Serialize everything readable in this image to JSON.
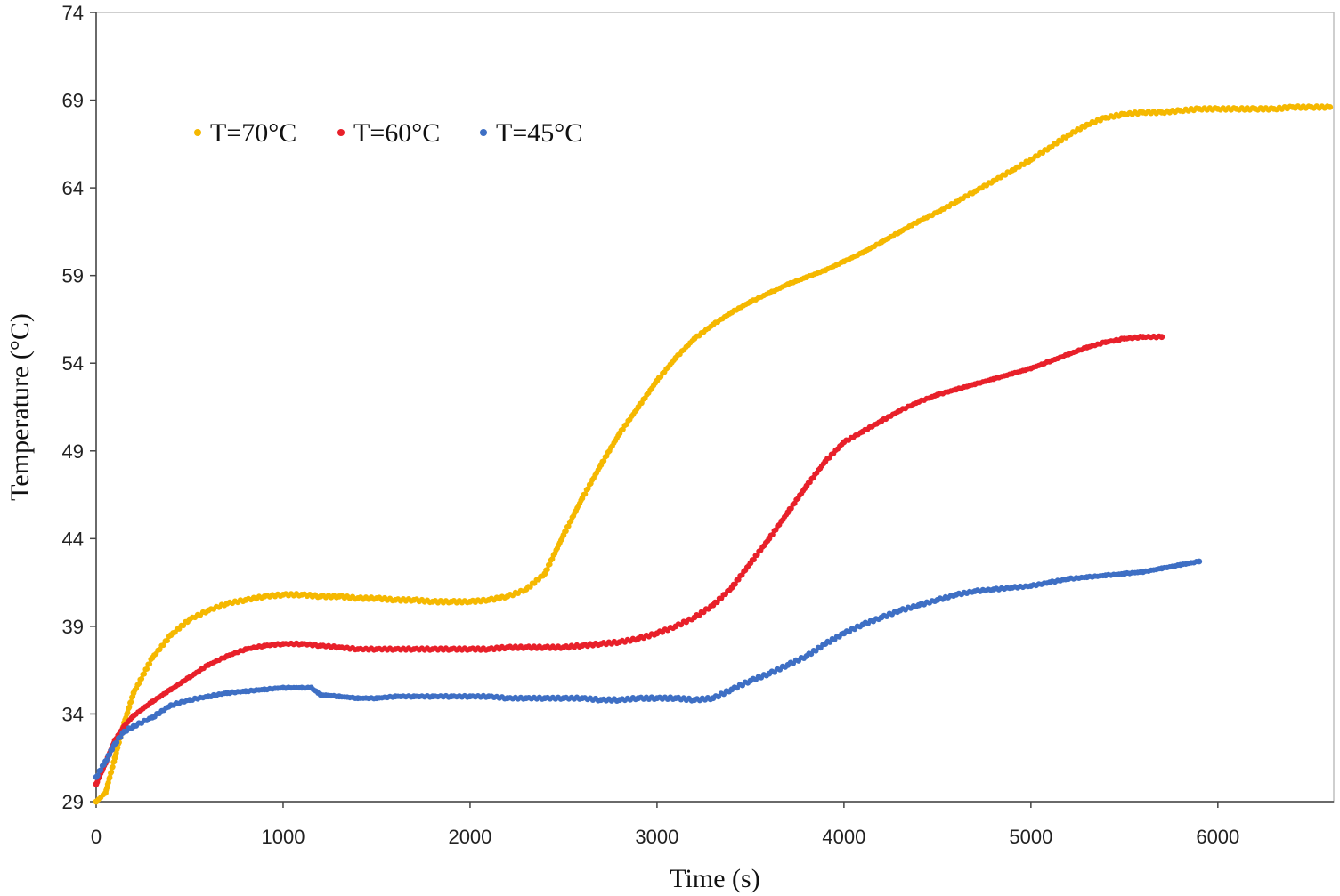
{
  "chart_data": {
    "type": "scatter",
    "xlabel": "Time (s)",
    "ylabel": "Temperature (°C)",
    "xlim": [
      0,
      6620
    ],
    "ylim": [
      29,
      74
    ],
    "xticks": [
      0,
      1000,
      2000,
      3000,
      4000,
      5000,
      6000
    ],
    "yticks": [
      29,
      34,
      39,
      44,
      49,
      54,
      59,
      64,
      69,
      74
    ],
    "grid": false,
    "legend_position": "top-left",
    "series": [
      {
        "name": "T=70°C",
        "color": "#f5b800",
        "x": [
          0,
          50,
          100,
          150,
          200,
          300,
          400,
          500,
          600,
          700,
          800,
          900,
          1000,
          1100,
          1200,
          1300,
          1400,
          1500,
          1600,
          1700,
          1800,
          1900,
          2000,
          2100,
          2200,
          2300,
          2400,
          2500,
          2600,
          2700,
          2800,
          2900,
          3000,
          3100,
          3200,
          3300,
          3400,
          3500,
          3600,
          3700,
          3800,
          3900,
          4000,
          4100,
          4200,
          4300,
          4400,
          4500,
          4600,
          4700,
          4800,
          4900,
          5000,
          5100,
          5200,
          5300,
          5400,
          5500,
          5600,
          5700,
          5800,
          5900,
          6000,
          6100,
          6200,
          6300,
          6400,
          6500,
          6600
        ],
        "y": [
          29.0,
          29.5,
          31.5,
          33.5,
          35.2,
          37.2,
          38.5,
          39.4,
          39.9,
          40.3,
          40.5,
          40.7,
          40.8,
          40.8,
          40.7,
          40.7,
          40.6,
          40.6,
          40.5,
          40.5,
          40.4,
          40.4,
          40.4,
          40.5,
          40.7,
          41.1,
          42.0,
          44.2,
          46.3,
          48.2,
          50.0,
          51.5,
          53.0,
          54.3,
          55.4,
          56.2,
          56.9,
          57.5,
          58.0,
          58.5,
          58.9,
          59.3,
          59.8,
          60.3,
          60.9,
          61.5,
          62.1,
          62.6,
          63.2,
          63.8,
          64.4,
          65.0,
          65.6,
          66.3,
          67.0,
          67.6,
          68.0,
          68.2,
          68.3,
          68.3,
          68.4,
          68.5,
          68.5,
          68.5,
          68.5,
          68.5,
          68.6,
          68.6,
          68.6
        ]
      },
      {
        "name": "T=60°C",
        "color": "#e8202a",
        "x": [
          0,
          50,
          100,
          150,
          200,
          300,
          400,
          500,
          600,
          700,
          800,
          900,
          1000,
          1100,
          1200,
          1300,
          1400,
          1500,
          1600,
          1700,
          1800,
          1900,
          2000,
          2100,
          2200,
          2300,
          2400,
          2500,
          2600,
          2700,
          2800,
          2900,
          3000,
          3100,
          3200,
          3300,
          3400,
          3500,
          3600,
          3700,
          3800,
          3900,
          4000,
          4100,
          4200,
          4300,
          4400,
          4500,
          4600,
          4700,
          4800,
          4900,
          5000,
          5100,
          5200,
          5300,
          5400,
          5500,
          5600,
          5700
        ],
        "y": [
          30.0,
          31.2,
          32.5,
          33.3,
          33.9,
          34.7,
          35.4,
          36.1,
          36.8,
          37.3,
          37.7,
          37.9,
          38.0,
          38.0,
          37.9,
          37.8,
          37.7,
          37.7,
          37.7,
          37.7,
          37.7,
          37.7,
          37.7,
          37.7,
          37.8,
          37.8,
          37.8,
          37.8,
          37.9,
          38.0,
          38.1,
          38.3,
          38.6,
          39.0,
          39.5,
          40.2,
          41.2,
          42.6,
          44.0,
          45.5,
          47.0,
          48.4,
          49.5,
          50.1,
          50.7,
          51.3,
          51.8,
          52.2,
          52.5,
          52.8,
          53.1,
          53.4,
          53.7,
          54.1,
          54.5,
          54.9,
          55.2,
          55.4,
          55.5,
          55.5
        ]
      },
      {
        "name": "T=45°C",
        "color": "#3e6fc4",
        "x": [
          0,
          50,
          100,
          150,
          200,
          300,
          400,
          500,
          600,
          700,
          800,
          900,
          1000,
          1100,
          1150,
          1200,
          1300,
          1400,
          1500,
          1600,
          1700,
          1800,
          1900,
          2000,
          2100,
          2200,
          2300,
          2400,
          2500,
          2600,
          2700,
          2800,
          2900,
          3000,
          3100,
          3200,
          3300,
          3400,
          3500,
          3600,
          3700,
          3800,
          3900,
          4000,
          4100,
          4200,
          4300,
          4400,
          4500,
          4600,
          4700,
          4800,
          4900,
          5000,
          5100,
          5200,
          5300,
          5400,
          5500,
          5600,
          5700,
          5800,
          5900
        ],
        "y": [
          30.4,
          31.3,
          32.3,
          33.0,
          33.3,
          33.8,
          34.5,
          34.8,
          35.0,
          35.2,
          35.3,
          35.4,
          35.5,
          35.5,
          35.5,
          35.1,
          35.0,
          34.9,
          34.9,
          35.0,
          35.0,
          35.0,
          35.0,
          35.0,
          35.0,
          34.9,
          34.9,
          34.9,
          34.9,
          34.9,
          34.8,
          34.8,
          34.9,
          34.9,
          34.9,
          34.8,
          34.9,
          35.4,
          35.9,
          36.3,
          36.8,
          37.3,
          38.0,
          38.6,
          39.1,
          39.5,
          39.9,
          40.2,
          40.5,
          40.8,
          41.0,
          41.1,
          41.2,
          41.3,
          41.5,
          41.7,
          41.8,
          41.9,
          42.0,
          42.1,
          42.3,
          42.5,
          42.7
        ]
      }
    ]
  }
}
